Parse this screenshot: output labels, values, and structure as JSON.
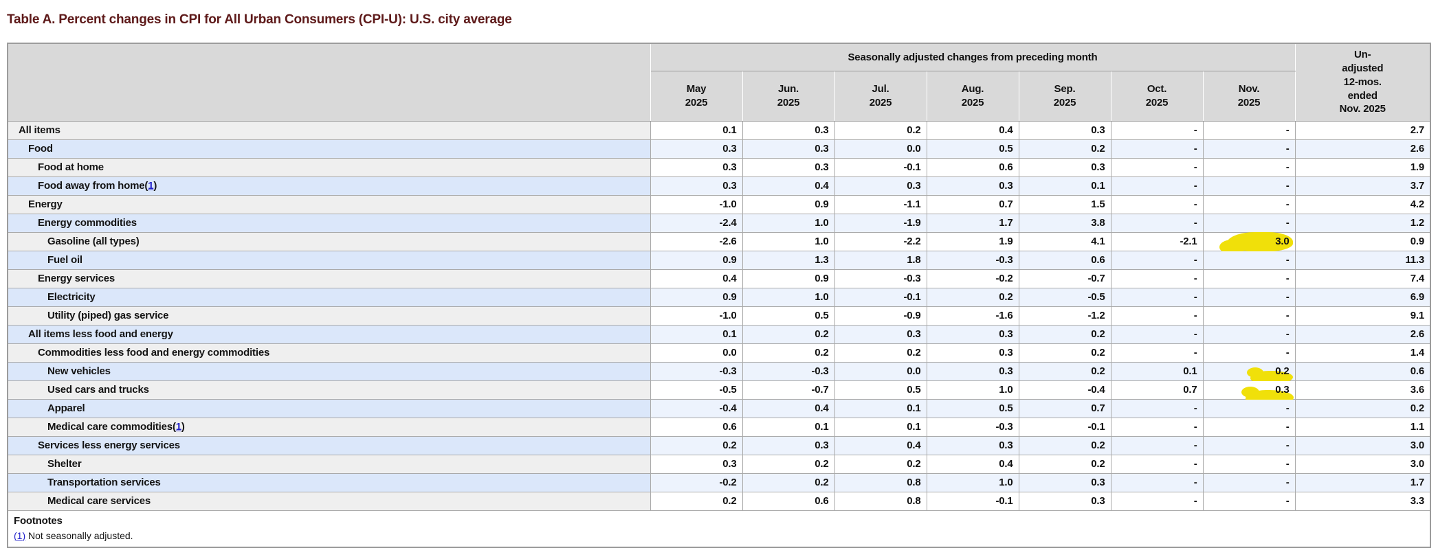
{
  "title": "Table A. Percent changes in CPI for All Urban Consumers (CPI-U): U.S. city average",
  "colors": {
    "title_color": "#5e1a1a",
    "link_color": "#2222cc",
    "highlight_yellow": "#f0e00a",
    "row_gray": "#efefef",
    "row_blue": "#dbe7fa",
    "cell_blue": "#edf3fd",
    "header_bg": "#d9d9d9"
  },
  "header": {
    "group_label": "Seasonally adjusted changes from preceding month",
    "months": [
      "May\n2025",
      "Jun.\n2025",
      "Jul.\n2025",
      "Aug.\n2025",
      "Sep.\n2025",
      "Oct.\n2025",
      "Nov.\n2025"
    ],
    "unadjusted_label": "Un-\nadjusted\n12-mos.\nended\nNov. 2025"
  },
  "rows": [
    {
      "label": "All items",
      "level": 0,
      "footnote_ref": null,
      "values": [
        "0.1",
        "0.3",
        "0.2",
        "0.4",
        "0.3",
        "-",
        "-",
        "2.7"
      ],
      "highlight": null
    },
    {
      "label": "Food",
      "level": 1,
      "footnote_ref": null,
      "values": [
        "0.3",
        "0.3",
        "0.0",
        "0.5",
        "0.2",
        "-",
        "-",
        "2.6"
      ],
      "highlight": null
    },
    {
      "label": "Food at home",
      "level": 2,
      "footnote_ref": null,
      "values": [
        "0.3",
        "0.3",
        "-0.1",
        "0.6",
        "0.3",
        "-",
        "-",
        "1.9"
      ],
      "highlight": null
    },
    {
      "label": "Food away from home",
      "level": 2,
      "footnote_ref": "1",
      "values": [
        "0.3",
        "0.4",
        "0.3",
        "0.3",
        "0.1",
        "-",
        "-",
        "3.7"
      ],
      "highlight": null
    },
    {
      "label": "Energy",
      "level": 1,
      "footnote_ref": null,
      "values": [
        "-1.0",
        "0.9",
        "-1.1",
        "0.7",
        "1.5",
        "-",
        "-",
        "4.2"
      ],
      "highlight": null
    },
    {
      "label": "Energy commodities",
      "level": 2,
      "footnote_ref": null,
      "values": [
        "-2.4",
        "1.0",
        "-1.9",
        "1.7",
        "3.8",
        "-",
        "-",
        "1.2"
      ],
      "highlight": null
    },
    {
      "label": "Gasoline (all types)",
      "level": 3,
      "footnote_ref": null,
      "values": [
        "-2.6",
        "1.0",
        "-2.2",
        "1.9",
        "4.1",
        "-2.1",
        "3.0",
        "0.9"
      ],
      "highlight": {
        "col": 6,
        "style": "cover"
      }
    },
    {
      "label": "Fuel oil",
      "level": 3,
      "footnote_ref": null,
      "values": [
        "0.9",
        "1.3",
        "1.8",
        "-0.3",
        "0.6",
        "-",
        "-",
        "11.3"
      ],
      "highlight": null
    },
    {
      "label": "Energy services",
      "level": 2,
      "footnote_ref": null,
      "values": [
        "0.4",
        "0.9",
        "-0.3",
        "-0.2",
        "-0.7",
        "-",
        "-",
        "7.4"
      ],
      "highlight": null
    },
    {
      "label": "Electricity",
      "level": 3,
      "footnote_ref": null,
      "values": [
        "0.9",
        "1.0",
        "-0.1",
        "0.2",
        "-0.5",
        "-",
        "-",
        "6.9"
      ],
      "highlight": null
    },
    {
      "label": "Utility (piped) gas service",
      "level": 3,
      "footnote_ref": null,
      "values": [
        "-1.0",
        "0.5",
        "-0.9",
        "-1.6",
        "-1.2",
        "-",
        "-",
        "9.1"
      ],
      "highlight": null
    },
    {
      "label": "All items less food and energy",
      "level": 1,
      "footnote_ref": null,
      "values": [
        "0.1",
        "0.2",
        "0.3",
        "0.3",
        "0.2",
        "-",
        "-",
        "2.6"
      ],
      "highlight": null
    },
    {
      "label": "Commodities less food and energy commodities",
      "level": 2,
      "footnote_ref": null,
      "values": [
        "0.0",
        "0.2",
        "0.2",
        "0.3",
        "0.2",
        "-",
        "-",
        "1.4"
      ],
      "highlight": null
    },
    {
      "label": "New vehicles",
      "level": 3,
      "footnote_ref": null,
      "values": [
        "-0.3",
        "-0.3",
        "0.0",
        "0.3",
        "0.2",
        "0.1",
        "0.2",
        "0.6"
      ],
      "highlight": {
        "col": 6,
        "style": "under"
      }
    },
    {
      "label": "Used cars and trucks",
      "level": 3,
      "footnote_ref": null,
      "values": [
        "-0.5",
        "-0.7",
        "0.5",
        "1.0",
        "-0.4",
        "0.7",
        "0.3",
        "3.6"
      ],
      "highlight": {
        "col": 6,
        "style": "under2"
      }
    },
    {
      "label": "Apparel",
      "level": 3,
      "footnote_ref": null,
      "values": [
        "-0.4",
        "0.4",
        "0.1",
        "0.5",
        "0.7",
        "-",
        "-",
        "0.2"
      ],
      "highlight": null
    },
    {
      "label": "Medical care commodities",
      "level": 3,
      "footnote_ref": "1",
      "values": [
        "0.6",
        "0.1",
        "0.1",
        "-0.3",
        "-0.1",
        "-",
        "-",
        "1.1"
      ],
      "highlight": null
    },
    {
      "label": "Services less energy services",
      "level": 2,
      "footnote_ref": null,
      "values": [
        "0.2",
        "0.3",
        "0.4",
        "0.3",
        "0.2",
        "-",
        "-",
        "3.0"
      ],
      "highlight": null
    },
    {
      "label": "Shelter",
      "level": 3,
      "footnote_ref": null,
      "values": [
        "0.3",
        "0.2",
        "0.2",
        "0.4",
        "0.2",
        "-",
        "-",
        "3.0"
      ],
      "highlight": null
    },
    {
      "label": "Transportation services",
      "level": 3,
      "footnote_ref": null,
      "values": [
        "-0.2",
        "0.2",
        "0.8",
        "1.0",
        "0.3",
        "-",
        "-",
        "1.7"
      ],
      "highlight": null
    },
    {
      "label": "Medical care services",
      "level": 3,
      "footnote_ref": null,
      "values": [
        "0.2",
        "0.6",
        "0.8",
        "-0.1",
        "0.3",
        "-",
        "-",
        "3.3"
      ],
      "highlight": null
    }
  ],
  "footnotes": {
    "heading": "Footnotes",
    "items": [
      {
        "ref": "(1)",
        "text": "Not seasonally adjusted."
      }
    ]
  }
}
